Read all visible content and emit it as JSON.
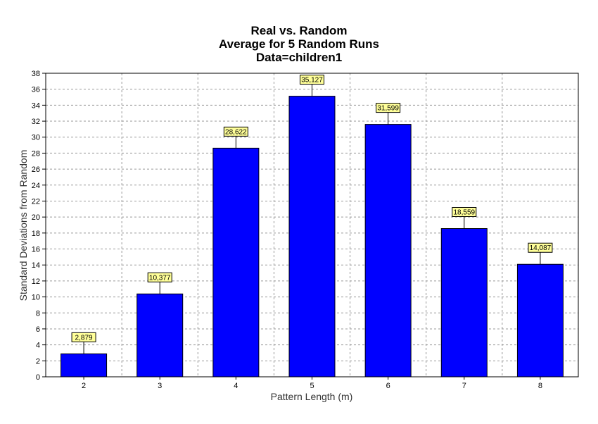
{
  "chart_data": {
    "type": "bar",
    "title_lines": [
      "Real vs. Random",
      "Average for 5 Random Runs",
      "Data=children1"
    ],
    "xlabel": "Pattern Length (m)",
    "ylabel": "Standard Deviations from Random",
    "categories": [
      "2",
      "3",
      "4",
      "5",
      "6",
      "7",
      "8"
    ],
    "values": [
      2.879,
      10.377,
      28.622,
      35.127,
      31.599,
      18.559,
      14.087
    ],
    "data_labels": [
      "2,879",
      "10,377",
      "28,622",
      "35,127",
      "31,599",
      "18,559",
      "14,087"
    ],
    "ylim": [
      0,
      38
    ],
    "yticks": [
      0,
      2,
      4,
      6,
      8,
      10,
      12,
      14,
      16,
      18,
      20,
      22,
      24,
      26,
      28,
      30,
      32,
      34,
      36,
      38
    ],
    "grid": true,
    "legend": "none"
  },
  "colors": {
    "bar": "#0000ff",
    "bar_stroke": "#000000",
    "label_bg": "#ffff99",
    "grid": "#9a9a9a"
  }
}
